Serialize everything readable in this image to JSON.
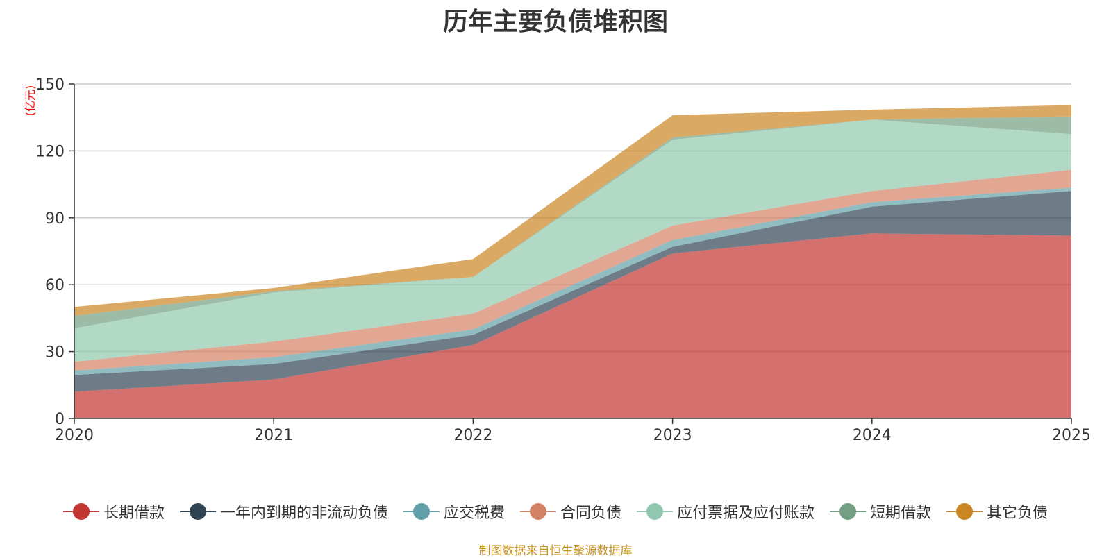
{
  "chart_data": {
    "type": "area",
    "stacked": true,
    "title": "历年主要负债堆积图",
    "unit_label": "(亿元)",
    "x": [
      "2020",
      "2021",
      "2022",
      "2023",
      "2024",
      "2025"
    ],
    "ylim": [
      0,
      150
    ],
    "yticks": [
      0,
      30,
      60,
      90,
      120,
      150
    ],
    "grid": true,
    "legend_position": "bottom",
    "series": [
      {
        "name": "长期借款",
        "color": "#c23531",
        "values": [
          12,
          17.5,
          33,
          74,
          83,
          82
        ]
      },
      {
        "name": "一年内到期的非流动负债",
        "color": "#2f4554",
        "values": [
          7.5,
          7,
          4.5,
          3,
          12,
          20
        ]
      },
      {
        "name": "应交税费",
        "color": "#61a0a8",
        "values": [
          2,
          3,
          2.5,
          3,
          2,
          1.5
        ]
      },
      {
        "name": "合同负债",
        "color": "#d48265",
        "values": [
          4,
          7,
          7,
          6.5,
          5,
          8
        ]
      },
      {
        "name": "应付票据及应付账款",
        "color": "#91c7ae",
        "values": [
          15,
          22,
          16.5,
          38.5,
          32,
          16
        ]
      },
      {
        "name": "短期借款",
        "color": "#749f83",
        "values": [
          5.5,
          0.5,
          0,
          1,
          0,
          8
        ]
      },
      {
        "name": "其它负债",
        "color": "#ca8622",
        "values": [
          4,
          1.5,
          8,
          10,
          4.5,
          5
        ]
      }
    ]
  },
  "footer": {
    "source": "制图数据来自恒生聚源数据库",
    "color": "#c89520"
  }
}
